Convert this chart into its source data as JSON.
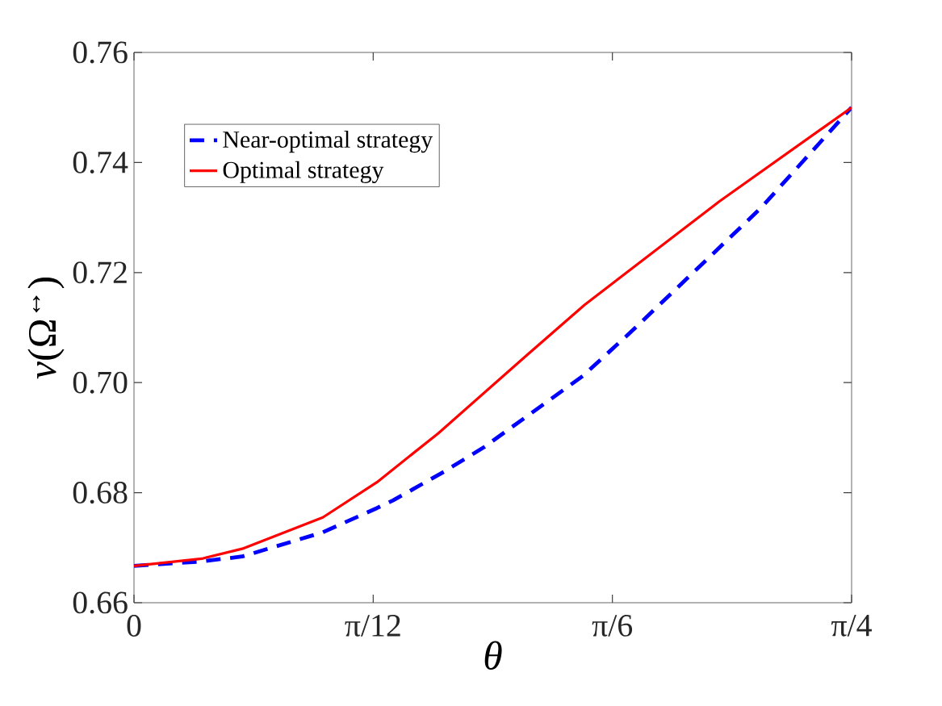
{
  "chart_data": {
    "type": "line",
    "xlabel": "*θ*",
    "ylabel": "*v*(Ω$^{↔}$)",
    "xlim": [
      0,
      0.7854
    ],
    "ylim": [
      0.66,
      0.76
    ],
    "xticks": [
      0,
      {
        "value": 0.2618,
        "label": "π/12"
      },
      {
        "value": 0.5236,
        "label": "π/6"
      },
      {
        "value": 0.7854,
        "label": "π/4"
      }
    ],
    "yticks": [
      0.66,
      0.68,
      {
        "value": 0.7,
        "label": "0.70"
      },
      0.72,
      0.74,
      0.76
    ],
    "grid": false,
    "legend": "top left",
    "marker": "none",
    "series": [
      {
        "name": "Near-optimal strategy",
        "color": "#0000ff",
        "line_style": "dashed",
        "x": [
          0,
          0.0742,
          0.1184,
          0.2067,
          0.2659,
          0.2836,
          0.3392,
          0.3834,
          0.4912,
          0.5451,
          0.614,
          0.6865,
          0.7854
        ],
        "values": [
          0.6667,
          0.6675,
          0.6684,
          0.6728,
          0.6772,
          0.6786,
          0.6838,
          0.6883,
          0.7012,
          0.7094,
          0.7203,
          0.7318,
          0.75
        ]
      },
      {
        "name": "Optimal strategy",
        "color": "#ff0000",
        "line_style": "solid",
        "x": [
          0,
          0.0742,
          0.1184,
          0.2067,
          0.2659,
          0.3331,
          0.4294,
          0.493,
          0.591,
          0.6405,
          0.7854
        ],
        "values": [
          0.6667,
          0.668,
          0.6698,
          0.6755,
          0.6819,
          0.6908,
          0.7049,
          0.7141,
          0.7266,
          0.7329,
          0.75
        ]
      }
    ]
  }
}
